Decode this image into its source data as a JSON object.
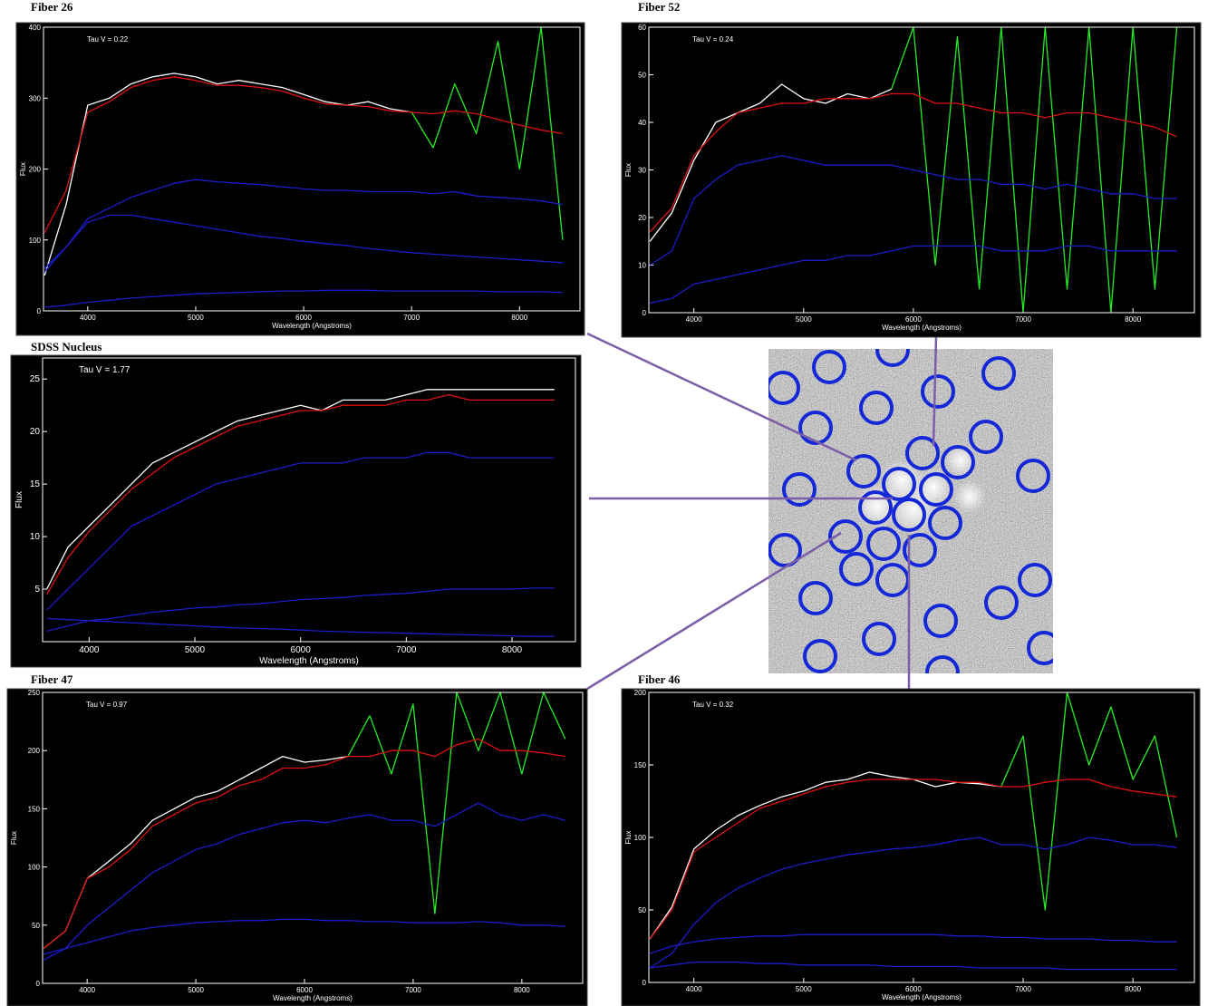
{
  "chart_data": [
    {
      "type": "line",
      "title": "Fiber 26",
      "annotation": "Tau V =  0.22",
      "xlabel": "Wavelength (Angstroms)",
      "ylabel": "Flux",
      "x": [
        3600,
        3800,
        4000,
        4200,
        4400,
        4600,
        4800,
        5000,
        5200,
        5400,
        5600,
        5800,
        6000,
        6200,
        6400,
        6600,
        6800,
        7000,
        7200,
        7400,
        7600,
        7800,
        8000,
        8200,
        8400
      ],
      "xlim": [
        3590,
        8560
      ],
      "ylim": [
        0,
        400
      ],
      "xticks": [
        4000,
        5000,
        6000,
        7000,
        8000
      ],
      "yticks": [
        0,
        100,
        200,
        300,
        400
      ],
      "series": [
        {
          "color": "#ffffff",
          "values": [
            50,
            150,
            290,
            300,
            320,
            330,
            335,
            330,
            320,
            325,
            320,
            315,
            305,
            295,
            290,
            295,
            285,
            280,
            null,
            null,
            null,
            null,
            null,
            null,
            null
          ]
        },
        {
          "color": "#22ee22",
          "values": [
            null,
            null,
            null,
            null,
            null,
            null,
            null,
            null,
            null,
            null,
            null,
            null,
            null,
            null,
            null,
            null,
            null,
            280,
            230,
            320,
            250,
            380,
            200,
            400,
            100
          ]
        },
        {
          "color": "#dd1111",
          "values": [
            110,
            170,
            280,
            295,
            315,
            325,
            330,
            325,
            318,
            318,
            315,
            310,
            300,
            292,
            290,
            288,
            282,
            280,
            278,
            282,
            278,
            270,
            262,
            255,
            250
          ]
        },
        {
          "color": "#1c1cc8",
          "values": [
            60,
            90,
            130,
            145,
            160,
            170,
            180,
            185,
            182,
            180,
            178,
            175,
            172,
            170,
            170,
            168,
            168,
            168,
            165,
            168,
            162,
            160,
            158,
            155,
            150
          ]
        },
        {
          "color": "#1c1cc8",
          "values": [
            55,
            90,
            125,
            135,
            135,
            130,
            125,
            120,
            115,
            110,
            105,
            102,
            98,
            95,
            92,
            88,
            85,
            82,
            80,
            78,
            76,
            74,
            72,
            70,
            68
          ]
        },
        {
          "color": "#1c1cc8",
          "values": [
            5,
            8,
            12,
            15,
            18,
            20,
            22,
            24,
            25,
            26,
            27,
            28,
            28,
            29,
            29,
            29,
            28,
            28,
            28,
            28,
            28,
            27,
            27,
            27,
            26
          ]
        }
      ]
    },
    {
      "type": "line",
      "title": "Fiber 52",
      "annotation": "Tau V =  0.24",
      "xlabel": "Wavelength (Angstroms)",
      "ylabel": "Flux",
      "x": [
        3600,
        3800,
        4000,
        4200,
        4400,
        4600,
        4800,
        5000,
        5200,
        5400,
        5600,
        5800,
        6000,
        6200,
        6400,
        6600,
        6800,
        7000,
        7200,
        7400,
        7600,
        7800,
        8000,
        8200,
        8400
      ],
      "xlim": [
        3590,
        8560
      ],
      "ylim": [
        0,
        60
      ],
      "xticks": [
        4000,
        5000,
        6000,
        7000,
        8000
      ],
      "yticks": [
        0,
        10,
        20,
        30,
        40,
        50,
        60
      ],
      "series": [
        {
          "color": "#ffffff",
          "values": [
            15,
            21,
            32,
            40,
            42,
            44,
            48,
            45,
            44,
            46,
            45,
            47,
            null,
            null,
            null,
            null,
            null,
            null,
            null,
            null,
            null,
            null,
            null,
            null,
            null
          ]
        },
        {
          "color": "#22ee22",
          "values": [
            null,
            null,
            null,
            null,
            null,
            null,
            null,
            null,
            null,
            null,
            null,
            47,
            60,
            10,
            58,
            5,
            60,
            0,
            60,
            5,
            60,
            0,
            60,
            5,
            60
          ]
        },
        {
          "color": "#dd1111",
          "values": [
            17,
            22,
            33,
            38,
            42,
            43,
            44,
            44,
            45,
            45,
            45,
            46,
            46,
            44,
            44,
            43,
            42,
            42,
            41,
            42,
            42,
            41,
            40,
            39,
            37
          ]
        },
        {
          "color": "#1c1cc8",
          "values": [
            10,
            13,
            24,
            28,
            31,
            32,
            33,
            32,
            31,
            31,
            31,
            31,
            30,
            29,
            28,
            28,
            27,
            27,
            26,
            27,
            26,
            25,
            25,
            24,
            24
          ]
        },
        {
          "color": "#1c1cc8",
          "values": [
            2,
            3,
            6,
            7,
            8,
            9,
            10,
            11,
            11,
            12,
            12,
            13,
            14,
            14,
            14,
            14,
            13,
            13,
            13,
            14,
            14,
            13,
            13,
            13,
            13
          ]
        }
      ]
    },
    {
      "type": "line",
      "title": "SDSS Nucleus",
      "annotation": "Tau V =  1.77",
      "xlabel": "Wavelength (Angstroms)",
      "ylabel": "Flux",
      "x": [
        3600,
        3800,
        4000,
        4200,
        4400,
        4600,
        4800,
        5000,
        5200,
        5400,
        5600,
        5800,
        6000,
        6200,
        6400,
        6600,
        6800,
        7000,
        7200,
        7400,
        7600,
        7800,
        8000,
        8200,
        8400
      ],
      "xlim": [
        3560,
        8600
      ],
      "ylim": [
        0,
        27
      ],
      "xticks": [
        4000,
        5000,
        6000,
        7000,
        8000
      ],
      "yticks": [
        5,
        10,
        15,
        20,
        25
      ],
      "series": [
        {
          "color": "#ffffff",
          "values": [
            5,
            9,
            11,
            13,
            15,
            17,
            18,
            19,
            20,
            21,
            21.5,
            22,
            22.5,
            22,
            23,
            23,
            23,
            23.5,
            24,
            24,
            24,
            24,
            24,
            24,
            24
          ]
        },
        {
          "color": "#dd1111",
          "values": [
            4.5,
            8,
            10.5,
            12.5,
            14.5,
            16,
            17.5,
            18.5,
            19.5,
            20.5,
            21,
            21.5,
            22,
            22,
            22.5,
            22.5,
            22.5,
            23,
            23,
            23.5,
            23,
            23,
            23,
            23,
            23
          ]
        },
        {
          "color": "#1c1cc8",
          "values": [
            3,
            5,
            7,
            9,
            11,
            12,
            13,
            14,
            15,
            15.5,
            16,
            16.5,
            17,
            17,
            17,
            17.5,
            17.5,
            17.5,
            18,
            18,
            17.5,
            17.5,
            17.5,
            17.5,
            17.5
          ]
        },
        {
          "color": "#1c1cc8",
          "values": [
            1,
            1.5,
            2,
            2.2,
            2.5,
            2.8,
            3,
            3.2,
            3.3,
            3.5,
            3.6,
            3.8,
            4,
            4.1,
            4.2,
            4.4,
            4.5,
            4.6,
            4.8,
            5,
            5,
            5,
            5,
            5.1,
            5.1
          ]
        },
        {
          "color": "#1c1cc8",
          "values": [
            2.2,
            2.1,
            2,
            1.9,
            1.8,
            1.7,
            1.6,
            1.5,
            1.4,
            1.3,
            1.25,
            1.2,
            1.1,
            1,
            0.95,
            0.9,
            0.85,
            0.8,
            0.75,
            0.7,
            0.65,
            0.6,
            0.55,
            0.5,
            0.5
          ]
        }
      ]
    },
    {
      "type": "line",
      "title": "Fiber 47",
      "annotation": "Tau V =  0.97",
      "xlabel": "Wavelength (Angstroms)",
      "ylabel": "Flux",
      "x": [
        3600,
        3800,
        4000,
        4200,
        4400,
        4600,
        4800,
        5000,
        5200,
        5400,
        5600,
        5800,
        6000,
        6200,
        6400,
        6600,
        6800,
        7000,
        7200,
        7400,
        7600,
        7800,
        8000,
        8200,
        8400
      ],
      "xlim": [
        3590,
        8560
      ],
      "ylim": [
        0,
        250
      ],
      "xticks": [
        4000,
        5000,
        6000,
        7000,
        8000
      ],
      "yticks": [
        0,
        50,
        100,
        150,
        200,
        250
      ],
      "series": [
        {
          "color": "#ffffff",
          "values": [
            30,
            45,
            90,
            105,
            120,
            140,
            150,
            160,
            165,
            175,
            185,
            195,
            190,
            192,
            195,
            null,
            null,
            null,
            null,
            null,
            null,
            null,
            null,
            null,
            null
          ]
        },
        {
          "color": "#22ee22",
          "values": [
            null,
            null,
            null,
            null,
            null,
            null,
            null,
            null,
            null,
            null,
            null,
            null,
            null,
            null,
            195,
            230,
            180,
            240,
            60,
            250,
            200,
            250,
            180,
            250,
            210
          ]
        },
        {
          "color": "#dd1111",
          "values": [
            30,
            45,
            90,
            100,
            115,
            135,
            145,
            155,
            160,
            170,
            175,
            185,
            185,
            188,
            195,
            195,
            200,
            200,
            195,
            205,
            210,
            200,
            200,
            198,
            195
          ]
        },
        {
          "color": "#1c1cc8",
          "values": [
            20,
            30,
            50,
            65,
            80,
            95,
            105,
            115,
            120,
            128,
            133,
            138,
            140,
            138,
            142,
            145,
            140,
            140,
            135,
            145,
            155,
            145,
            140,
            145,
            140
          ]
        },
        {
          "color": "#1c1cc8",
          "values": [
            25,
            30,
            35,
            40,
            45,
            48,
            50,
            52,
            53,
            54,
            54,
            55,
            55,
            54,
            54,
            53,
            53,
            52,
            52,
            52,
            53,
            52,
            50,
            50,
            49
          ]
        }
      ]
    },
    {
      "type": "line",
      "title": "Fiber 46",
      "annotation": "Tau V =  0.32",
      "xlabel": "Wavelength (Angstroms)",
      "ylabel": "Flux",
      "x": [
        3600,
        3800,
        4000,
        4200,
        4400,
        4600,
        4800,
        5000,
        5200,
        5400,
        5600,
        5800,
        6000,
        6200,
        6400,
        6600,
        6800,
        7000,
        7200,
        7400,
        7600,
        7800,
        8000,
        8200,
        8400
      ],
      "xlim": [
        3590,
        8560
      ],
      "ylim": [
        0,
        200
      ],
      "xticks": [
        4000,
        5000,
        6000,
        7000,
        8000
      ],
      "yticks": [
        0,
        50,
        100,
        150,
        200
      ],
      "series": [
        {
          "color": "#ffffff",
          "values": [
            30,
            52,
            92,
            105,
            115,
            122,
            128,
            132,
            138,
            140,
            145,
            142,
            140,
            135,
            138,
            137,
            135,
            null,
            null,
            null,
            null,
            null,
            null,
            null,
            null
          ]
        },
        {
          "color": "#22ee22",
          "values": [
            null,
            null,
            null,
            null,
            null,
            null,
            null,
            null,
            null,
            null,
            null,
            null,
            null,
            null,
            null,
            null,
            135,
            170,
            50,
            200,
            150,
            190,
            140,
            170,
            100
          ]
        },
        {
          "color": "#dd1111",
          "values": [
            30,
            50,
            90,
            100,
            110,
            120,
            125,
            130,
            135,
            138,
            140,
            140,
            140,
            140,
            138,
            138,
            135,
            135,
            138,
            140,
            140,
            135,
            132,
            130,
            128
          ]
        },
        {
          "color": "#1c1cc8",
          "values": [
            10,
            20,
            40,
            55,
            65,
            72,
            78,
            82,
            85,
            88,
            90,
            92,
            93,
            95,
            98,
            100,
            95,
            95,
            92,
            95,
            100,
            98,
            95,
            95,
            93
          ]
        },
        {
          "color": "#1c1cc8",
          "values": [
            20,
            25,
            28,
            30,
            31,
            32,
            32,
            33,
            33,
            33,
            33,
            33,
            33,
            33,
            32,
            32,
            31,
            31,
            30,
            30,
            30,
            29,
            29,
            28,
            28
          ]
        },
        {
          "color": "#1c1cc8",
          "values": [
            10,
            12,
            14,
            14,
            14,
            13,
            13,
            12,
            12,
            12,
            12,
            11,
            11,
            11,
            11,
            10,
            10,
            10,
            10,
            9,
            9,
            9,
            9,
            9,
            9
          ]
        }
      ]
    }
  ]
}
